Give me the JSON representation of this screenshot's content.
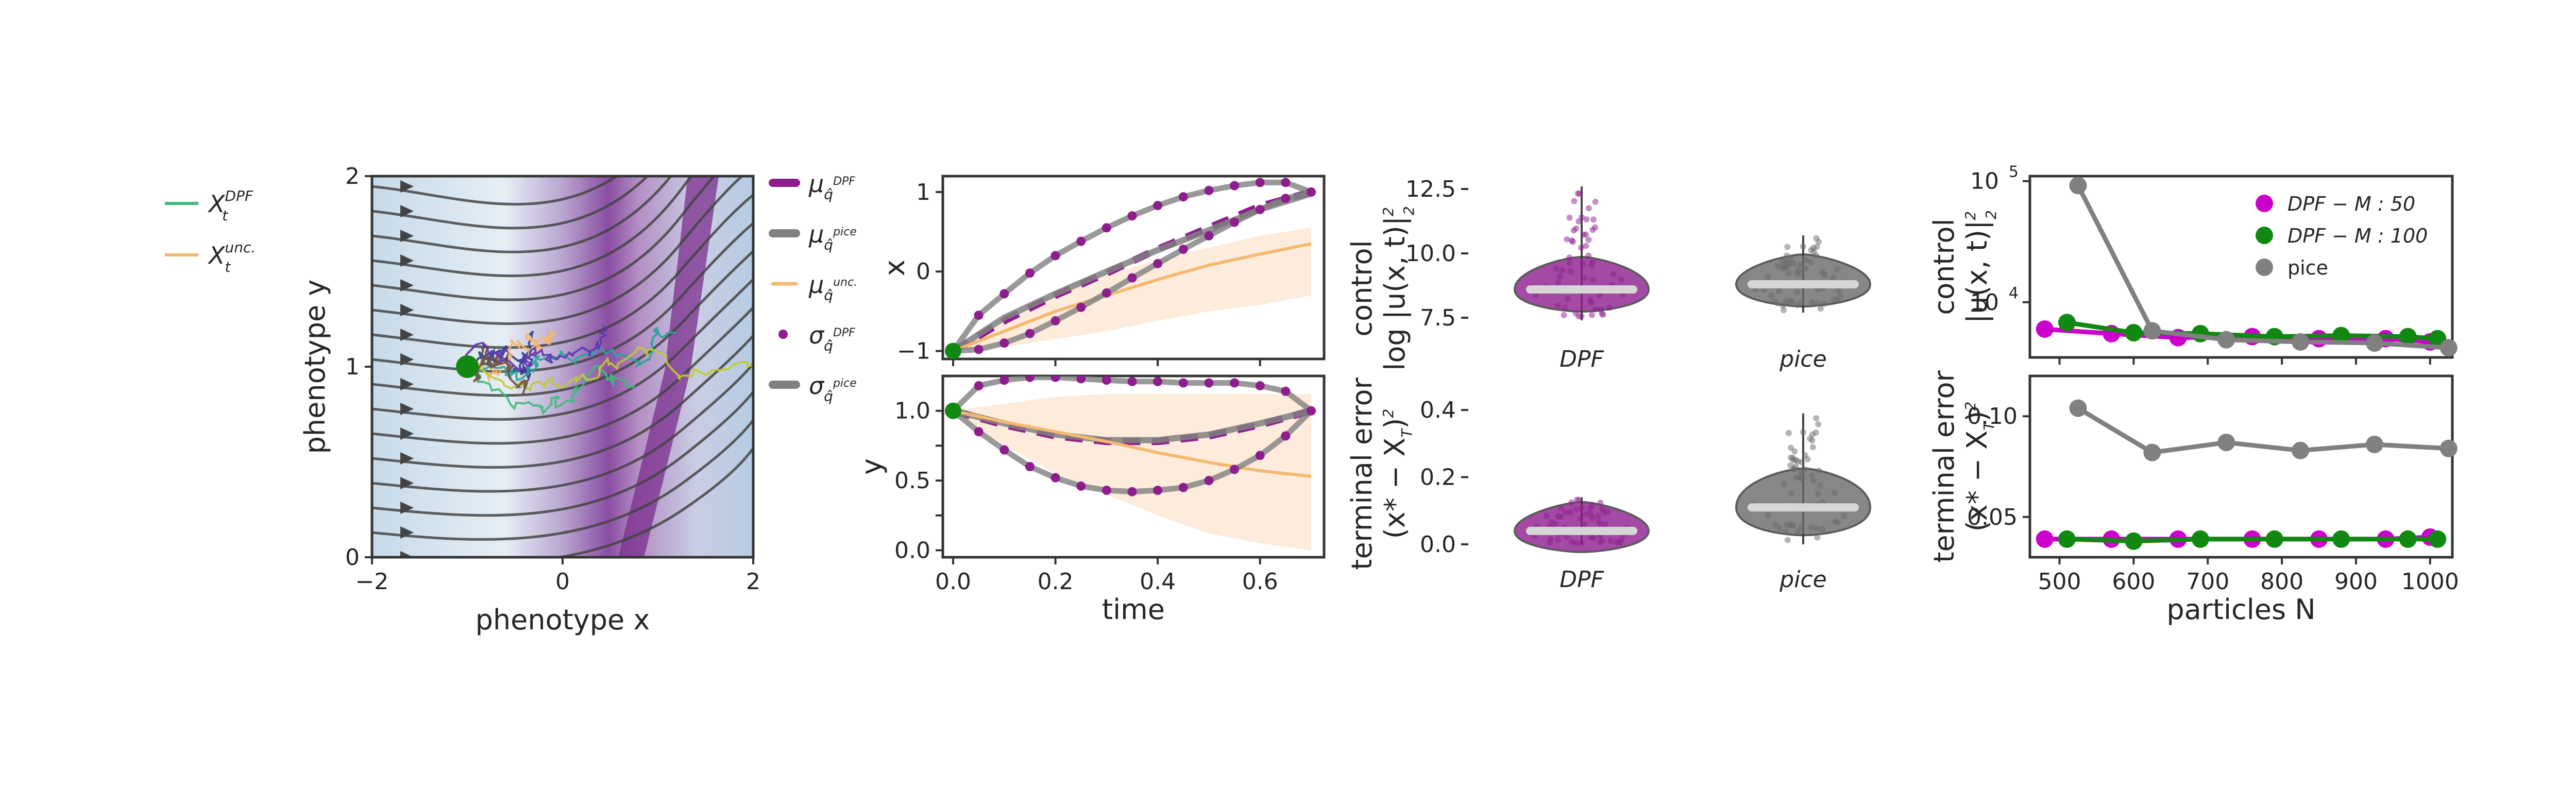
{
  "chart_data": [
    {
      "panel": "a",
      "type": "streamplot-heatmap",
      "xlabel": "phenotype x",
      "ylabel": "phenotype y",
      "xlim": [
        -2,
        2
      ],
      "ylim": [
        0,
        2
      ],
      "xticks": [
        -2,
        0,
        2
      ],
      "yticks": [
        0,
        1,
        2
      ],
      "start_point": [
        -1,
        1
      ],
      "legend": [
        {
          "name": "X",
          "sup": "DPF",
          "sub": "t",
          "color": "#3dbb7a"
        },
        {
          "name": "X",
          "sup": "unc.",
          "sub": "t",
          "color": "#f5b66a"
        }
      ],
      "colors": {
        "background_light": "#c9dbe9",
        "band": "#7b2e8e",
        "streamlines": "#3f3f3f"
      }
    },
    {
      "panel": "b",
      "type": "line",
      "ylabel": "x",
      "xlim": [
        0,
        0.7
      ],
      "ylim": [
        -1.1,
        1.2
      ],
      "xticks": [
        0.0,
        0.2,
        0.4,
        0.6
      ],
      "yticks": [
        -1,
        0,
        1
      ],
      "series": [
        {
          "style": "mean-dashed",
          "color": "#8e1d8e",
          "x": [
            0,
            0.1,
            0.2,
            0.3,
            0.4,
            0.5,
            0.6,
            0.7
          ],
          "y": [
            -1.0,
            -0.62,
            -0.3,
            -0.02,
            0.28,
            0.55,
            0.82,
            1.0
          ]
        },
        {
          "style": "mean-solid-grey",
          "color": "#808080",
          "x": [
            0,
            0.1,
            0.2,
            0.3,
            0.4,
            0.5,
            0.6,
            0.7
          ],
          "y": [
            -1.0,
            -0.58,
            -0.28,
            0.0,
            0.27,
            0.52,
            0.78,
            0.98
          ]
        },
        {
          "style": "unc-mean",
          "color": "#f5b870",
          "x": [
            0,
            0.1,
            0.2,
            0.3,
            0.4,
            0.5,
            0.6,
            0.7
          ],
          "y": [
            -1.0,
            -0.75,
            -0.5,
            -0.3,
            -0.1,
            0.08,
            0.22,
            0.35
          ]
        },
        {
          "style": "sigma-upper-dots",
          "color": "#8e1d8e",
          "x": [
            0,
            0.05,
            0.1,
            0.15,
            0.2,
            0.25,
            0.3,
            0.35,
            0.4,
            0.45,
            0.5,
            0.55,
            0.6,
            0.65,
            0.7
          ],
          "y": [
            -1.0,
            -0.55,
            -0.28,
            -0.02,
            0.2,
            0.38,
            0.55,
            0.7,
            0.83,
            0.94,
            1.02,
            1.08,
            1.12,
            1.12,
            1.0
          ]
        },
        {
          "style": "sigma-lower-dots",
          "color": "#8e1d8e",
          "x": [
            0,
            0.05,
            0.1,
            0.15,
            0.2,
            0.25,
            0.3,
            0.35,
            0.4,
            0.45,
            0.5,
            0.55,
            0.6,
            0.65,
            0.7
          ],
          "y": [
            -1.0,
            -0.98,
            -0.9,
            -0.78,
            -0.62,
            -0.45,
            -0.27,
            -0.08,
            0.1,
            0.28,
            0.45,
            0.62,
            0.78,
            0.92,
            1.0
          ]
        }
      ],
      "band": {
        "color": "#fde9d8",
        "x": [
          0,
          0.1,
          0.2,
          0.3,
          0.4,
          0.5,
          0.6,
          0.7
        ],
        "upper": [
          -1.0,
          -0.6,
          -0.3,
          -0.05,
          0.15,
          0.3,
          0.45,
          0.55
        ],
        "lower": [
          -1.0,
          -0.95,
          -0.85,
          -0.75,
          -0.62,
          -0.5,
          -0.42,
          -0.3
        ]
      }
    },
    {
      "panel": "c",
      "type": "line",
      "xlabel": "time",
      "ylabel": "y",
      "xlim": [
        0,
        0.7
      ],
      "ylim": [
        -0.05,
        1.25
      ],
      "xticks": [
        0.0,
        0.2,
        0.4,
        0.6
      ],
      "yticks": [
        0.0,
        0.25,
        0.5,
        0.75,
        1.0
      ],
      "ytick_labels": [
        "0.0",
        "0.5",
        "1.0"
      ],
      "series": [
        {
          "style": "mean-dashed",
          "color": "#8e1d8e",
          "x": [
            0,
            0.1,
            0.2,
            0.3,
            0.4,
            0.5,
            0.6,
            0.7
          ],
          "y": [
            1.0,
            0.9,
            0.82,
            0.78,
            0.78,
            0.82,
            0.9,
            1.0
          ]
        },
        {
          "style": "mean-solid-grey",
          "color": "#808080",
          "x": [
            0,
            0.1,
            0.2,
            0.3,
            0.4,
            0.5,
            0.6,
            0.7
          ],
          "y": [
            1.0,
            0.91,
            0.83,
            0.79,
            0.79,
            0.83,
            0.91,
            1.0
          ]
        },
        {
          "style": "unc-mean",
          "color": "#f5b870",
          "x": [
            0,
            0.1,
            0.2,
            0.3,
            0.4,
            0.5,
            0.6,
            0.7
          ],
          "y": [
            1.0,
            0.92,
            0.85,
            0.78,
            0.7,
            0.63,
            0.57,
            0.53
          ]
        },
        {
          "style": "sigma-upper-dots",
          "color": "#8e1d8e",
          "x": [
            0,
            0.05,
            0.1,
            0.15,
            0.2,
            0.25,
            0.3,
            0.35,
            0.4,
            0.45,
            0.5,
            0.55,
            0.6,
            0.65,
            0.7
          ],
          "y": [
            1.0,
            1.18,
            1.22,
            1.24,
            1.24,
            1.23,
            1.22,
            1.21,
            1.21,
            1.2,
            1.2,
            1.2,
            1.18,
            1.14,
            1.0
          ]
        },
        {
          "style": "sigma-lower-dots",
          "color": "#8e1d8e",
          "x": [
            0,
            0.05,
            0.1,
            0.15,
            0.2,
            0.25,
            0.3,
            0.35,
            0.4,
            0.45,
            0.5,
            0.55,
            0.6,
            0.65,
            0.7
          ],
          "y": [
            1.0,
            0.85,
            0.72,
            0.6,
            0.52,
            0.46,
            0.43,
            0.42,
            0.43,
            0.45,
            0.5,
            0.58,
            0.68,
            0.82,
            1.0
          ]
        }
      ],
      "band": {
        "color": "#fde9d8",
        "x": [
          0,
          0.1,
          0.2,
          0.3,
          0.4,
          0.5,
          0.6,
          0.7
        ],
        "upper": [
          1.0,
          1.05,
          1.1,
          1.12,
          1.12,
          1.12,
          1.12,
          1.12
        ],
        "lower": [
          1.0,
          0.75,
          0.55,
          0.4,
          0.25,
          0.12,
          0.05,
          0.0
        ]
      }
    },
    {
      "panel": "bc-legend",
      "type": "legend",
      "entries": [
        {
          "symbol": "μ",
          "sub": "q̂",
          "supsub": "DPF",
          "color": "#8e1d8e",
          "marker": "line-thick"
        },
        {
          "symbol": "μ",
          "sub": "q̂",
          "supsub": "pice",
          "color": "#808080",
          "marker": "line-thick"
        },
        {
          "symbol": "μ",
          "sub": "q̂",
          "supsub": "unc.",
          "color": "#f5b870",
          "marker": "line-thin"
        },
        {
          "symbol": "σ",
          "sub": "q̂",
          "supsub": "DPF",
          "color": "#8e1d8e",
          "marker": "dot"
        },
        {
          "symbol": "σ",
          "sub": "q̂",
          "supsub": "pice",
          "color": "#808080",
          "marker": "line-thick"
        }
      ]
    },
    {
      "panel": "d",
      "type": "violin",
      "ylabel_lines": [
        "control",
        "log |u(x, t)|",
        "2",
        "2"
      ],
      "ylim": [
        7.0,
        13.0
      ],
      "yticks": [
        7.5,
        10.0,
        12.5
      ],
      "categories": [
        "DPF",
        "pice"
      ],
      "series": [
        {
          "name": "DPF",
          "color": "#8e1d8e",
          "median": 8.6,
          "min": 7.4,
          "max": 12.6,
          "q1": 8.3,
          "q3": 9.0
        },
        {
          "name": "pice",
          "color": "#6a6a6a",
          "median": 8.8,
          "min": 7.7,
          "max": 10.7,
          "q1": 8.5,
          "q3": 9.1
        }
      ]
    },
    {
      "panel": "e",
      "type": "violin",
      "ylabel_lines": [
        "terminal error",
        "(x* − X",
        "T",
        ")",
        "2"
      ],
      "ylim": [
        -0.02,
        0.44
      ],
      "yticks": [
        0.0,
        0.2,
        0.4
      ],
      "categories": [
        "DPF",
        "pice"
      ],
      "series": [
        {
          "name": "DPF",
          "color": "#8e1d8e",
          "median": 0.04,
          "min": 0.0,
          "max": 0.14,
          "q1": 0.02,
          "q3": 0.06
        },
        {
          "name": "pice",
          "color": "#6a6a6a",
          "median": 0.11,
          "min": 0.0,
          "max": 0.39,
          "q1": 0.07,
          "q3": 0.16
        }
      ]
    },
    {
      "panel": "f",
      "type": "line",
      "yscale": "log",
      "ylabel_lines": [
        "control",
        "|u(x, t)|",
        "2",
        "2"
      ],
      "xlim": [
        460,
        1030
      ],
      "ylim": [
        3500,
        110000
      ],
      "ytick_labels": [
        {
          "base": "10",
          "exp": "5",
          "value": 100000
        },
        {
          "base": "10",
          "exp": "4",
          "value": 10000
        }
      ],
      "legend": {
        "placement": "top-right"
      },
      "series": [
        {
          "name": "DPF − M : 50",
          "color": "#cc00cc",
          "x": [
            480,
            570,
            660,
            760,
            850,
            940,
            1000
          ],
          "y": [
            6000,
            5500,
            5100,
            5200,
            5000,
            5000,
            4700
          ]
        },
        {
          "name": "DPF − M : 100",
          "color": "#118811",
          "x": [
            510,
            600,
            690,
            790,
            880,
            970,
            1010
          ],
          "y": [
            6800,
            5600,
            5500,
            5200,
            5300,
            5200,
            5000
          ]
        },
        {
          "name": "pice",
          "color": "#808080",
          "x": [
            525,
            625,
            725,
            825,
            925,
            1025
          ],
          "y": [
            92000,
            5800,
            4900,
            4700,
            4600,
            4200
          ]
        }
      ]
    },
    {
      "panel": "g",
      "type": "line",
      "xlabel": "particles N",
      "ylabel_lines": [
        "terminal error",
        "(x* − X",
        "T",
        ")",
        "2"
      ],
      "xlim": [
        460,
        1030
      ],
      "ylim": [
        0.03,
        0.12
      ],
      "xticks": [
        500,
        600,
        700,
        800,
        900,
        1000
      ],
      "yticks": [
        0.05,
        0.1
      ],
      "ytick_labels": [
        "0.05",
        "0.10"
      ],
      "series": [
        {
          "name": "DPF − M : 50",
          "color": "#cc00cc",
          "x": [
            480,
            570,
            660,
            760,
            850,
            940,
            1000
          ],
          "y": [
            0.039,
            0.039,
            0.039,
            0.039,
            0.039,
            0.039,
            0.04
          ]
        },
        {
          "name": "DPF − M : 100",
          "color": "#118811",
          "x": [
            510,
            600,
            690,
            790,
            880,
            970,
            1010
          ],
          "y": [
            0.039,
            0.038,
            0.039,
            0.039,
            0.039,
            0.039,
            0.039
          ]
        },
        {
          "name": "pice",
          "color": "#808080",
          "x": [
            525,
            625,
            725,
            825,
            925,
            1025
          ],
          "y": [
            0.104,
            0.082,
            0.087,
            0.083,
            0.086,
            0.084
          ]
        }
      ]
    }
  ]
}
